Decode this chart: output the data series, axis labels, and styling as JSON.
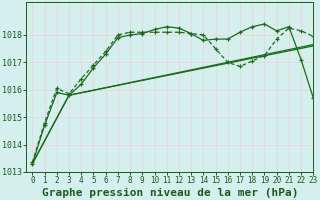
{
  "title": "Graphe pression niveau de la mer (hPa)",
  "background_color": "#d5efef",
  "grid_color": "#f0d0d0",
  "line_color": "#1a6b1a",
  "xlim": [
    -0.5,
    23
  ],
  "ylim": [
    1013,
    1019.2
  ],
  "yticks": [
    1013,
    1014,
    1015,
    1016,
    1017,
    1018
  ],
  "xticks": [
    0,
    1,
    2,
    3,
    4,
    5,
    6,
    7,
    8,
    9,
    10,
    11,
    12,
    13,
    14,
    15,
    16,
    17,
    18,
    19,
    20,
    21,
    22,
    23
  ],
  "series": [
    {
      "x": [
        0,
        1,
        2,
        3,
        4,
        5,
        6,
        7,
        8,
        9,
        10,
        11,
        12,
        13,
        14,
        15,
        16,
        17,
        18,
        19,
        20,
        21,
        22,
        23
      ],
      "y": [
        1013.3,
        1014.7,
        1015.9,
        1015.8,
        1016.2,
        1016.8,
        1017.3,
        1017.9,
        1018.0,
        1018.05,
        1018.2,
        1018.3,
        1018.25,
        1018.05,
        1017.8,
        1017.85,
        1017.85,
        1018.1,
        1018.3,
        1018.4,
        1018.15,
        1018.3,
        1017.1,
        1015.7
      ],
      "style": "solid",
      "marker": true
    },
    {
      "x": [
        0,
        1,
        2,
        3,
        4,
        5,
        6,
        7,
        8,
        9,
        10,
        11,
        12,
        13,
        14,
        15,
        16,
        17,
        18,
        19,
        20,
        21,
        22,
        23
      ],
      "y": [
        1013.35,
        1014.8,
        1016.05,
        1015.85,
        1016.4,
        1016.9,
        1017.4,
        1018.0,
        1018.1,
        1018.1,
        1018.1,
        1018.1,
        1018.1,
        1018.05,
        1018.0,
        1017.5,
        1017.0,
        1016.85,
        1017.05,
        1017.25,
        1017.85,
        1018.25,
        1018.15,
        1017.95
      ],
      "style": "dotted",
      "marker": true
    },
    {
      "x": [
        0,
        3,
        23
      ],
      "y": [
        1013.3,
        1015.8,
        1017.6
      ],
      "style": "solid",
      "marker": false
    },
    {
      "x": [
        0,
        3,
        23
      ],
      "y": [
        1013.3,
        1015.8,
        1017.65
      ],
      "style": "solid",
      "marker": false
    }
  ],
  "title_fontsize": 8,
  "tick_fontsize": 5.5,
  "title_color": "#1a5c1a",
  "tick_color": "#1a5c1a",
  "axis_color": "#1a5c1a"
}
